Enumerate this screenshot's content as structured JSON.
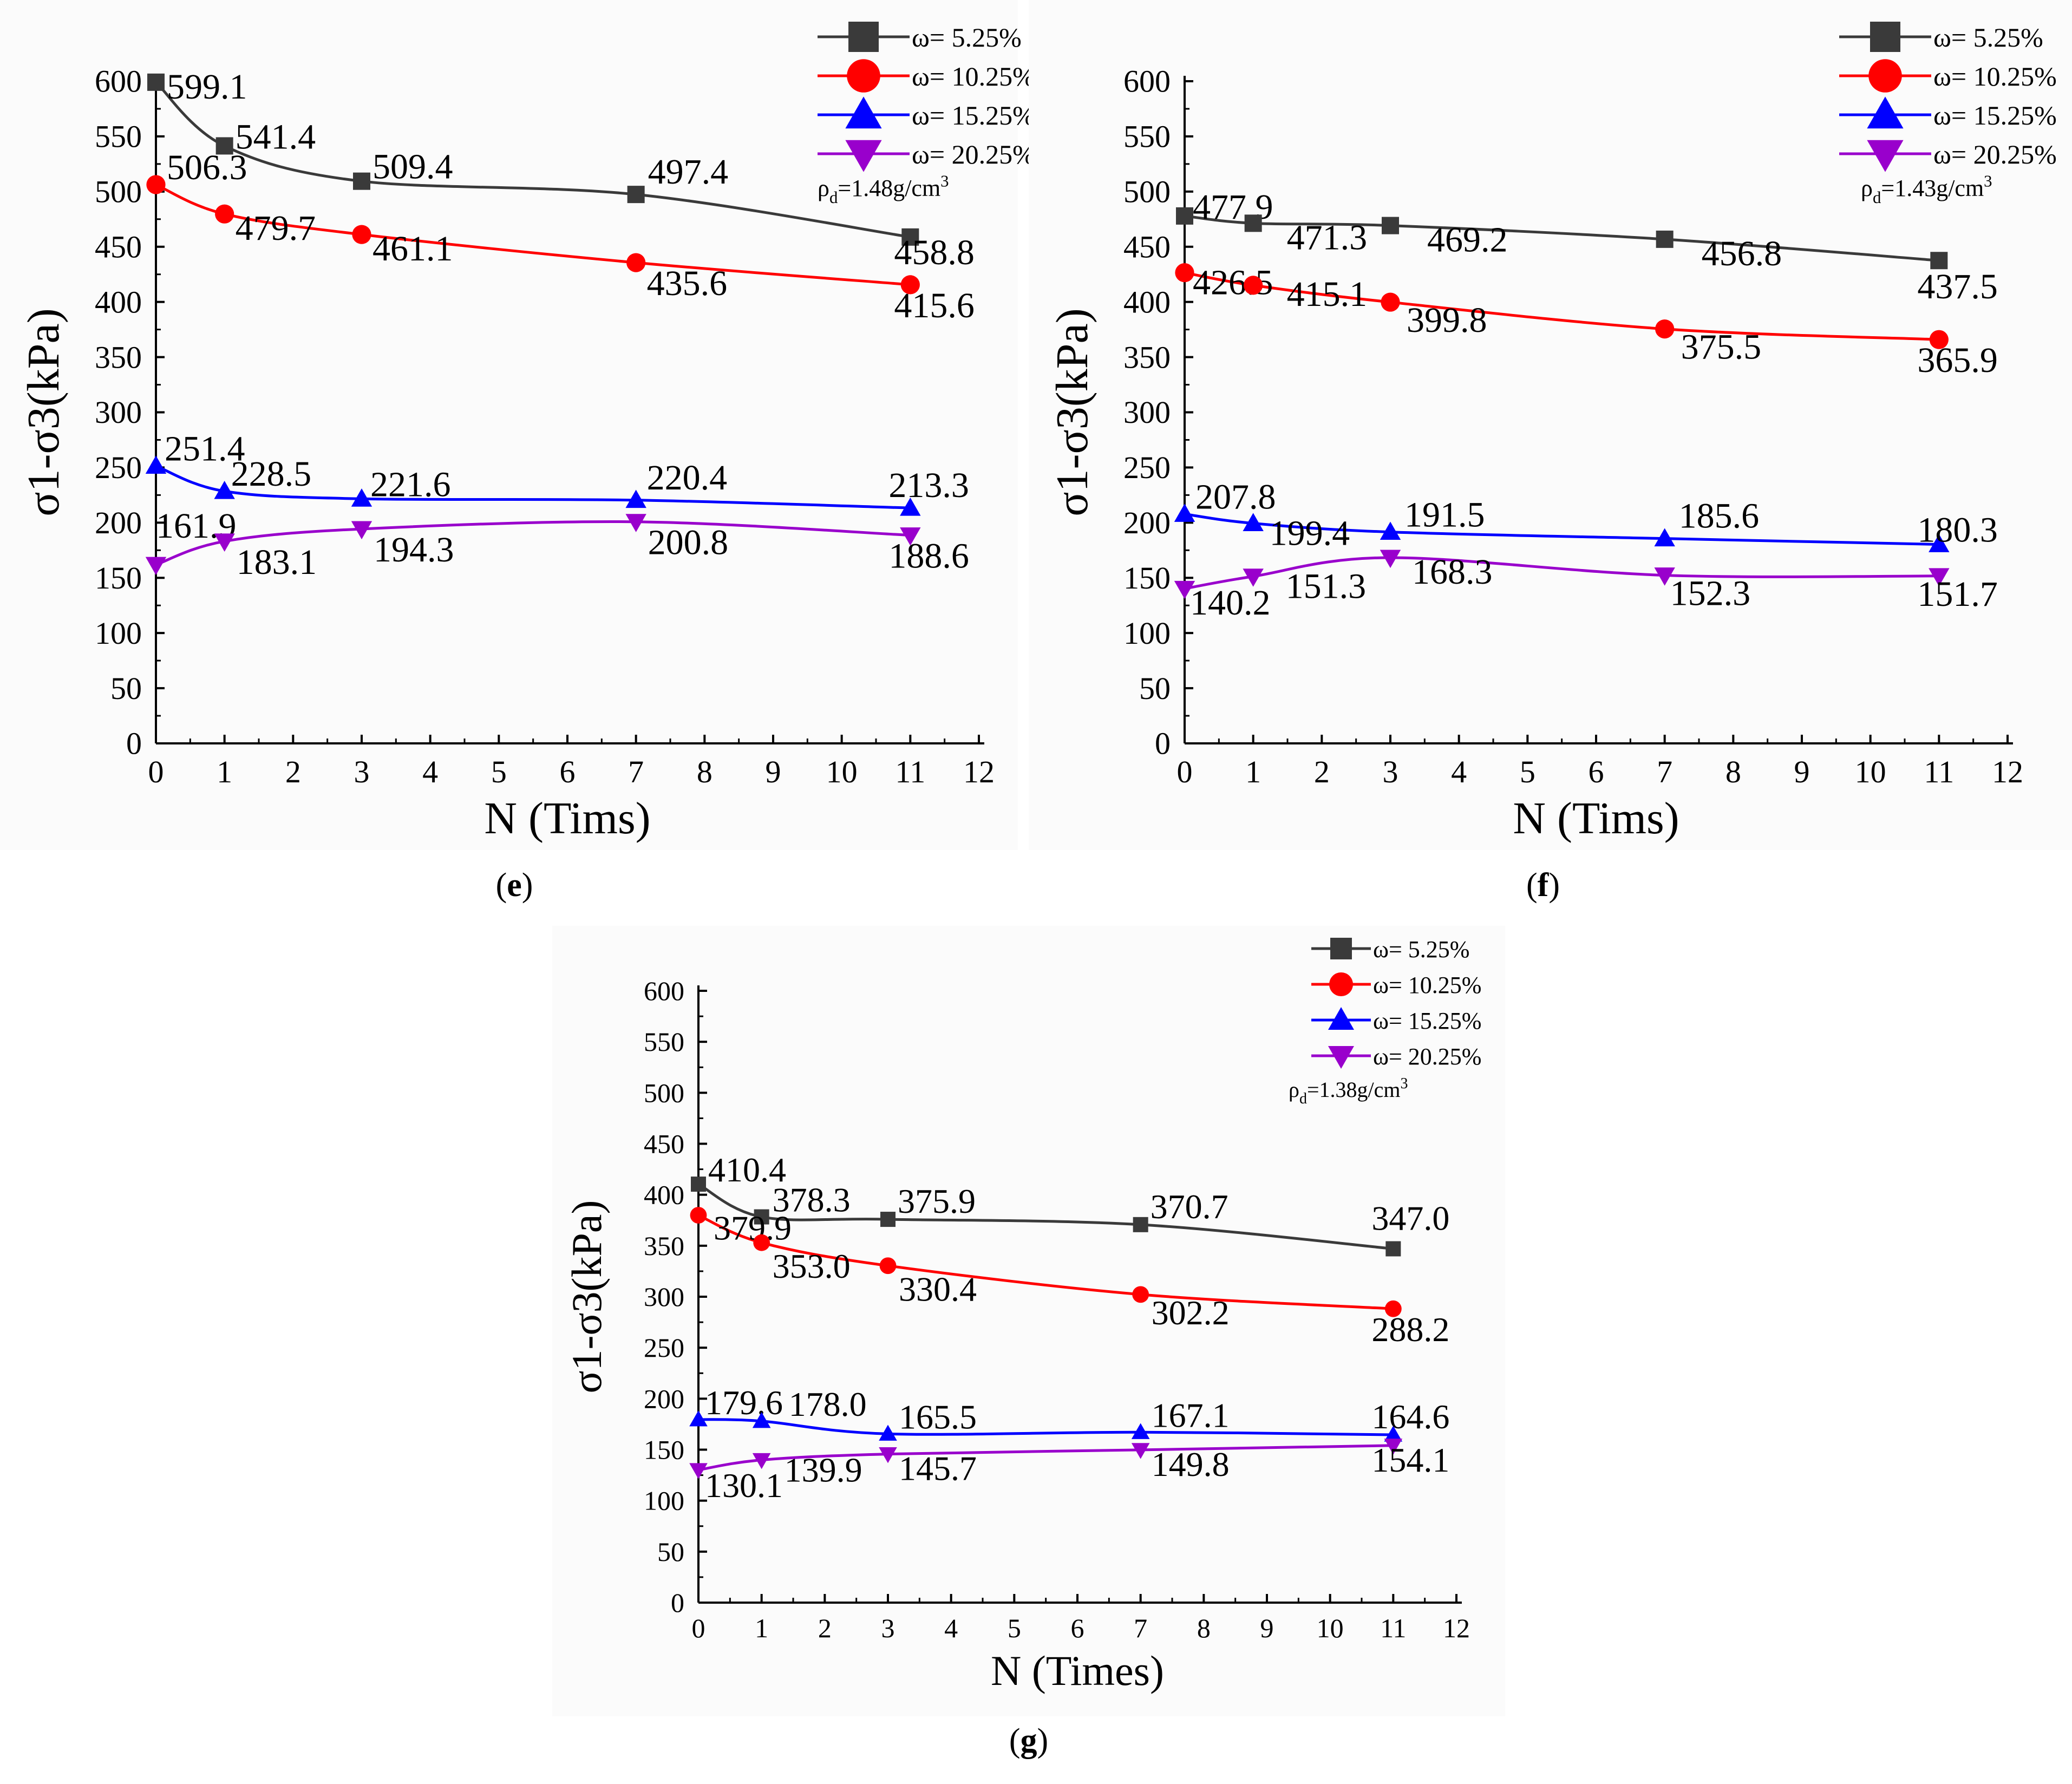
{
  "chart_data": [
    {
      "panel": "e",
      "type": "line",
      "ylabel": "σ1-σ3(kPa)",
      "xlabel": "N (Tims)",
      "xlim": [
        0,
        12
      ],
      "ylim": [
        0,
        600
      ],
      "xticks": [
        0,
        1,
        2,
        3,
        4,
        5,
        6,
        7,
        8,
        9,
        10,
        11,
        12
      ],
      "yticks": [
        0,
        50,
        100,
        150,
        200,
        250,
        300,
        350,
        400,
        450,
        500,
        550,
        600
      ],
      "density_note": "ρd=1.48g/cm3",
      "x": [
        0,
        1,
        3,
        7,
        11
      ],
      "series": [
        {
          "name": "ω= 5.25%",
          "color": "#3a3a3a",
          "marker": "square",
          "values": [
            599.1,
            541.4,
            509.4,
            497.4,
            458.8
          ],
          "labels": [
            "599.1",
            "541.4",
            "509.4",
            "497.4",
            "458.8"
          ]
        },
        {
          "name": "ω= 10.25%",
          "color": "#ff0000",
          "marker": "circle",
          "values": [
            506.3,
            479.7,
            461.1,
            435.6,
            415.6
          ],
          "labels": [
            "506.3",
            "479.7",
            "461.1",
            "435.6",
            "415.6"
          ]
        },
        {
          "name": "ω= 15.25%",
          "color": "#0000ff",
          "marker": "triangle-up",
          "values": [
            251.4,
            228.5,
            221.6,
            220.4,
            213.3
          ],
          "labels": [
            "251.4",
            "228.5",
            "221.6",
            "220.4",
            "213.3"
          ]
        },
        {
          "name": "ω= 20.25%",
          "color": "#9900cc",
          "marker": "triangle-down",
          "values": [
            161.9,
            183.1,
            194.3,
            200.8,
            188.6
          ],
          "labels": [
            "161.9",
            "183.1",
            "194.3",
            "200.8",
            "188.6"
          ]
        }
      ]
    },
    {
      "panel": "f",
      "type": "line",
      "ylabel": "σ1-σ3(kPa)",
      "xlabel": "N (Tims)",
      "xlim": [
        0,
        12
      ],
      "ylim": [
        0,
        600
      ],
      "xticks": [
        0,
        1,
        2,
        3,
        4,
        5,
        6,
        7,
        8,
        9,
        10,
        11,
        12
      ],
      "yticks": [
        0,
        50,
        100,
        150,
        200,
        250,
        300,
        350,
        400,
        450,
        500,
        550,
        600
      ],
      "density_note": "ρd=1.43g/cm3",
      "x": [
        0,
        1,
        3,
        7,
        11
      ],
      "series": [
        {
          "name": "ω= 5.25%",
          "color": "#3a3a3a",
          "marker": "square",
          "values": [
            477.9,
            471.3,
            469.2,
            456.8,
            437.5
          ],
          "labels": [
            "477.9",
            "471.3",
            "469.2",
            "456.8",
            "437.5"
          ]
        },
        {
          "name": "ω= 10.25%",
          "color": "#ff0000",
          "marker": "circle",
          "values": [
            426.5,
            415.1,
            399.8,
            375.5,
            365.9
          ],
          "labels": [
            "426.5",
            "415.1",
            "399.8",
            "375.5",
            "365.9"
          ]
        },
        {
          "name": "ω= 15.25%",
          "color": "#0000ff",
          "marker": "triangle-up",
          "values": [
            207.8,
            199.4,
            191.5,
            185.6,
            180.3
          ],
          "labels": [
            "207.8",
            "199.4",
            "191.5",
            "185.6",
            "180.3"
          ]
        },
        {
          "name": "ω= 20.25%",
          "color": "#9900cc",
          "marker": "triangle-down",
          "values": [
            140.2,
            151.3,
            168.3,
            152.3,
            151.7
          ],
          "labels": [
            "140.2",
            "151.3",
            "168.3",
            "152.3",
            "151.7"
          ]
        }
      ]
    },
    {
      "panel": "g",
      "type": "line",
      "ylabel": "σ1-σ3(kPa)",
      "xlabel": "N (Times)",
      "xlim": [
        0,
        12
      ],
      "ylim": [
        0,
        600
      ],
      "xticks": [
        0,
        1,
        2,
        3,
        4,
        5,
        6,
        7,
        8,
        9,
        10,
        11,
        12
      ],
      "yticks": [
        0,
        50,
        100,
        150,
        200,
        250,
        300,
        350,
        400,
        450,
        500,
        550,
        600
      ],
      "density_note": "ρd=1.38g/cm3",
      "x": [
        0,
        1,
        3,
        7,
        11
      ],
      "series": [
        {
          "name": "ω= 5.25%",
          "color": "#3a3a3a",
          "marker": "square",
          "values": [
            410.4,
            378.3,
            375.9,
            370.7,
            347.0
          ],
          "labels": [
            "410.4",
            "378.3",
            "375.9",
            "370.7",
            "347.0"
          ]
        },
        {
          "name": "ω= 10.25%",
          "color": "#ff0000",
          "marker": "circle",
          "values": [
            379.9,
            353.0,
            330.4,
            302.2,
            288.2
          ],
          "labels": [
            "379.9",
            "353.0",
            "330.4",
            "302.2",
            "288.2"
          ]
        },
        {
          "name": "ω= 15.25%",
          "color": "#0000ff",
          "marker": "triangle-up",
          "values": [
            179.6,
            178.0,
            165.5,
            167.1,
            164.6
          ],
          "labels": [
            "179.6",
            "178.0",
            "165.5",
            "167.1",
            "164.6"
          ]
        },
        {
          "name": "ω= 20.25%",
          "color": "#9900cc",
          "marker": "triangle-down",
          "values": [
            130.1,
            139.9,
            145.7,
            149.8,
            154.1
          ],
          "labels": [
            "130.1",
            "139.9",
            "145.7",
            "149.8",
            "154.1"
          ]
        }
      ]
    }
  ],
  "panel_labels": {
    "e": "e",
    "f": "f",
    "g": "g"
  }
}
